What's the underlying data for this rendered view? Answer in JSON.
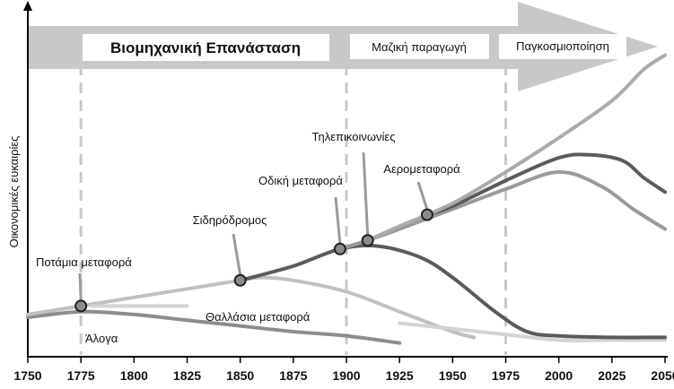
{
  "chart_data": {
    "type": "line",
    "title": "",
    "ylabel": "Οικονομικές ευκαιρίες",
    "xlabel": "",
    "xlim": [
      1750,
      2050
    ],
    "ylim": [
      0,
      100
    ],
    "x_ticks": [
      "1750",
      "1775",
      "1800",
      "1825",
      "1850",
      "1875",
      "1900",
      "1925",
      "1950",
      "1975",
      "2000",
      "2025",
      "2050"
    ],
    "eras": [
      {
        "label": "Βιομηχανική Επανάσταση",
        "start": 1750,
        "end": 1900
      },
      {
        "label": "Μαζική παραγωγή",
        "start": 1900,
        "end": 1975
      },
      {
        "label": "Παγκοσμιοποίηση",
        "start": 1975,
        "end": 2050
      }
    ],
    "era_dividers": [
      1775,
      1900,
      1975
    ],
    "series": [
      {
        "key": "alogo",
        "color": "#8c8c8c",
        "points": [
          [
            1750,
            5
          ],
          [
            1775,
            7
          ],
          [
            1800,
            6
          ],
          [
            1825,
            4
          ],
          [
            1850,
            2
          ],
          [
            1875,
            0
          ],
          [
            1900,
            -1.5
          ],
          [
            1925,
            -4
          ]
        ]
      },
      {
        "key": "potamia",
        "color": "#c0c0c0",
        "points": [
          [
            1750,
            6
          ],
          [
            1775,
            9
          ],
          [
            1800,
            12
          ],
          [
            1825,
            15
          ],
          [
            1850,
            18
          ],
          [
            1860,
            19
          ],
          [
            1875,
            18
          ],
          [
            1900,
            14
          ],
          [
            1925,
            7
          ],
          [
            1950,
            0
          ],
          [
            1960,
            -2
          ]
        ]
      },
      {
        "key": "thalassia",
        "color": "#d3d3d3",
        "points": [
          [
            1780,
            9
          ],
          [
            1800,
            9
          ],
          [
            1825,
            9
          ]
        ]
      },
      {
        "key": "thalassia_b",
        "color": "#d3d3d3",
        "points": [
          [
            1925,
            3
          ],
          [
            1950,
            1
          ],
          [
            1975,
            -1
          ],
          [
            2000,
            -3
          ],
          [
            2025,
            -3
          ],
          [
            2050,
            -3
          ]
        ]
      },
      {
        "key": "sidirodromos",
        "color": "#5b5b5b",
        "points": [
          [
            1850,
            18
          ],
          [
            1875,
            23
          ],
          [
            1897,
            29
          ],
          [
            1915,
            30
          ],
          [
            1935,
            26
          ],
          [
            1950,
            19
          ],
          [
            1970,
            7
          ],
          [
            1985,
            0
          ],
          [
            2000,
            -1.5
          ],
          [
            2025,
            -2
          ],
          [
            2050,
            -2
          ]
        ]
      },
      {
        "key": "odiki",
        "color": "#9a9a9a",
        "points": [
          [
            1897,
            29
          ],
          [
            1910,
            32
          ],
          [
            1925,
            36
          ],
          [
            1950,
            43
          ],
          [
            1975,
            50
          ],
          [
            2000,
            56
          ],
          [
            2020,
            51
          ],
          [
            2035,
            43
          ],
          [
            2050,
            36
          ]
        ]
      },
      {
        "key": "aero",
        "color": "#5b5b5b",
        "points": [
          [
            1938,
            41
          ],
          [
            1950,
            44
          ],
          [
            1975,
            53
          ],
          [
            2000,
            61
          ],
          [
            2015,
            62
          ],
          [
            2030,
            60
          ],
          [
            2040,
            54
          ],
          [
            2050,
            49
          ]
        ]
      },
      {
        "key": "tilepikoinonies",
        "color": "#ababab",
        "points": [
          [
            1910,
            32
          ],
          [
            1925,
            37
          ],
          [
            1950,
            45
          ],
          [
            1975,
            56
          ],
          [
            2000,
            68
          ],
          [
            2025,
            81
          ],
          [
            2040,
            92
          ],
          [
            2050,
            97
          ]
        ]
      }
    ],
    "markers": [
      {
        "label": "Ποτάμια μεταφορά",
        "x": 1775,
        "y": 9
      },
      {
        "label": "Σιδηρόδρομος",
        "x": 1850,
        "y": 18
      },
      {
        "label": "Οδική μεταφορά",
        "x": 1897,
        "y": 29
      },
      {
        "label": "Τηλεπικοινωνίες",
        "x": 1910,
        "y": 32
      },
      {
        "label": "Αερομεταφορά",
        "x": 1938,
        "y": 41
      }
    ],
    "annotations": [
      {
        "label": "Θαλλάσια μεταφορά",
        "x": 1850,
        "y": 5
      },
      {
        "label": "Άλογα",
        "x": 1780,
        "y": 0
      }
    ]
  }
}
